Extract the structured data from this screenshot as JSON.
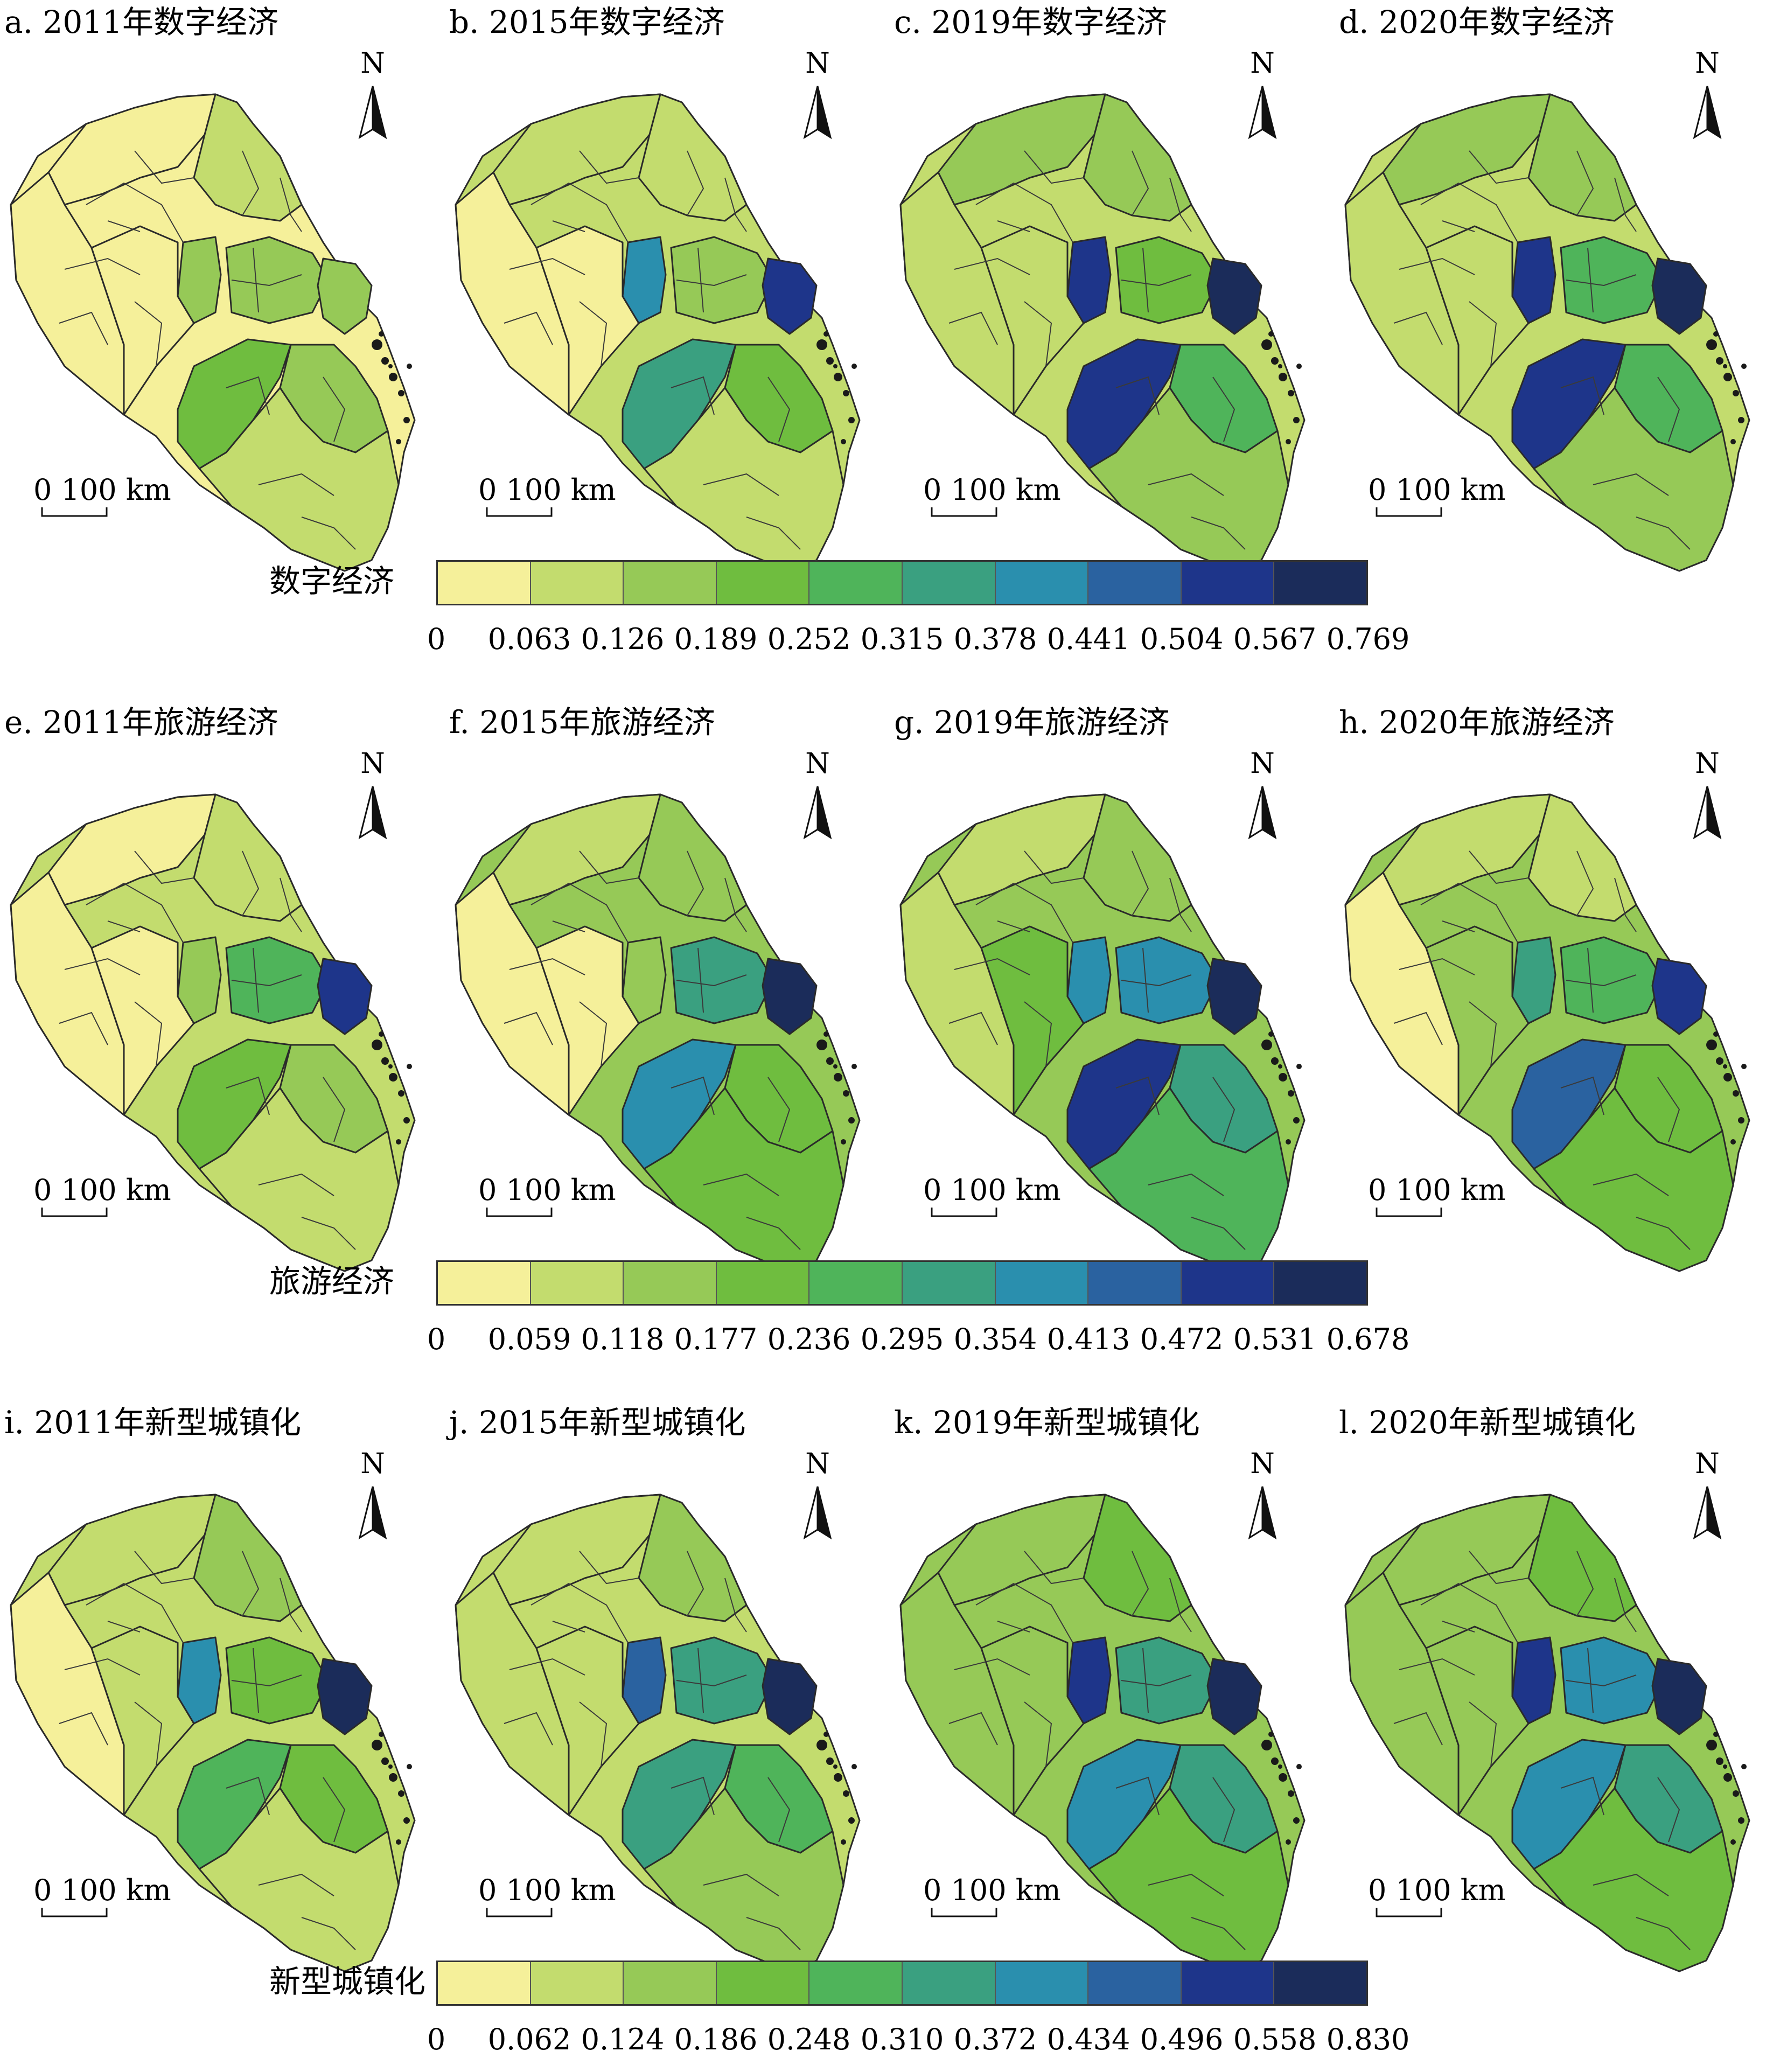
{
  "palette": [
    "#f5f09a",
    "#c3dc6e",
    "#96c957",
    "#6fbd3f",
    "#4fb45a",
    "#3aa080",
    "#2a8fae",
    "#2a62a0",
    "#1e358a",
    "#1b2c5a"
  ],
  "scale_text": "0   100 km",
  "north_label": "N",
  "rows": [
    {
      "legend_title": "数字经济",
      "legend_ticks": [
        "0",
        "0.063",
        "0.126",
        "0.189",
        "0.252",
        "0.315",
        "0.378",
        "0.441",
        "0.504",
        "0.567",
        "0.769"
      ],
      "panels": [
        {
          "title": "a. 2011年数字经济",
          "levels": {
            "base": 0,
            "north": 0,
            "ne": 1,
            "east": 2,
            "center": 2,
            "shanghai": 2,
            "southcenter": 3,
            "southeast": 2,
            "south": 1,
            "southwest": 0,
            "west": 0
          }
        },
        {
          "title": "b. 2015年数字经济",
          "levels": {
            "base": 1,
            "north": 1,
            "ne": 1,
            "east": 2,
            "center": 6,
            "shanghai": 8,
            "southcenter": 5,
            "southeast": 3,
            "south": 1,
            "southwest": 0,
            "west": 0
          }
        },
        {
          "title": "c. 2019年数字经济",
          "levels": {
            "base": 1,
            "north": 2,
            "ne": 2,
            "east": 3,
            "center": 8,
            "shanghai": 9,
            "southcenter": 8,
            "southeast": 4,
            "south": 2,
            "southwest": 1,
            "west": 1
          }
        },
        {
          "title": "d. 2020年数字经济",
          "levels": {
            "base": 1,
            "north": 2,
            "ne": 2,
            "east": 4,
            "center": 8,
            "shanghai": 9,
            "southcenter": 8,
            "southeast": 4,
            "south": 2,
            "southwest": 1,
            "west": 1
          }
        }
      ]
    },
    {
      "legend_title": "旅游经济",
      "legend_ticks": [
        "0",
        "0.059",
        "0.118",
        "0.177",
        "0.236",
        "0.295",
        "0.354",
        "0.413",
        "0.472",
        "0.531",
        "0.678"
      ],
      "panels": [
        {
          "title": "e. 2011年旅游经济",
          "levels": {
            "base": 1,
            "north": 0,
            "ne": 1,
            "east": 4,
            "center": 2,
            "shanghai": 8,
            "southcenter": 3,
            "southeast": 2,
            "south": 1,
            "southwest": 0,
            "west": 0
          }
        },
        {
          "title": "f. 2015年旅游经济",
          "levels": {
            "base": 2,
            "north": 1,
            "ne": 2,
            "east": 5,
            "center": 2,
            "shanghai": 9,
            "southcenter": 6,
            "southeast": 3,
            "south": 3,
            "southwest": 0,
            "west": 0
          }
        },
        {
          "title": "g. 2019年旅游经济",
          "levels": {
            "base": 2,
            "north": 1,
            "ne": 2,
            "east": 6,
            "center": 6,
            "shanghai": 9,
            "southcenter": 8,
            "southeast": 5,
            "south": 4,
            "southwest": 3,
            "west": 1
          }
        },
        {
          "title": "h. 2020年旅游经济",
          "levels": {
            "base": 2,
            "north": 1,
            "ne": 1,
            "east": 4,
            "center": 5,
            "shanghai": 8,
            "southcenter": 7,
            "southeast": 3,
            "south": 3,
            "southwest": 2,
            "west": 0
          }
        }
      ]
    },
    {
      "legend_title": "新型城镇化",
      "legend_ticks": [
        "0",
        "0.062",
        "0.124",
        "0.186",
        "0.248",
        "0.310",
        "0.372",
        "0.434",
        "0.496",
        "0.558",
        "0.830"
      ],
      "panels": [
        {
          "title": "i. 2011年新型城镇化",
          "levels": {
            "base": 1,
            "north": 1,
            "ne": 2,
            "east": 3,
            "center": 6,
            "shanghai": 9,
            "southcenter": 4,
            "southeast": 3,
            "south": 1,
            "southwest": 1,
            "west": 0
          }
        },
        {
          "title": "j. 2015年新型城镇化",
          "levels": {
            "base": 1,
            "north": 1,
            "ne": 2,
            "east": 5,
            "center": 7,
            "shanghai": 9,
            "southcenter": 5,
            "southeast": 4,
            "south": 2,
            "southwest": 1,
            "west": 1
          }
        },
        {
          "title": "k. 2019年新型城镇化",
          "levels": {
            "base": 2,
            "north": 2,
            "ne": 3,
            "east": 5,
            "center": 8,
            "shanghai": 9,
            "southcenter": 6,
            "southeast": 5,
            "south": 3,
            "southwest": 2,
            "west": 2
          }
        },
        {
          "title": "l. 2020年新型城镇化",
          "levels": {
            "base": 2,
            "north": 2,
            "ne": 3,
            "east": 6,
            "center": 8,
            "shanghai": 9,
            "southcenter": 6,
            "southeast": 5,
            "south": 3,
            "southwest": 2,
            "west": 2
          }
        }
      ]
    }
  ]
}
